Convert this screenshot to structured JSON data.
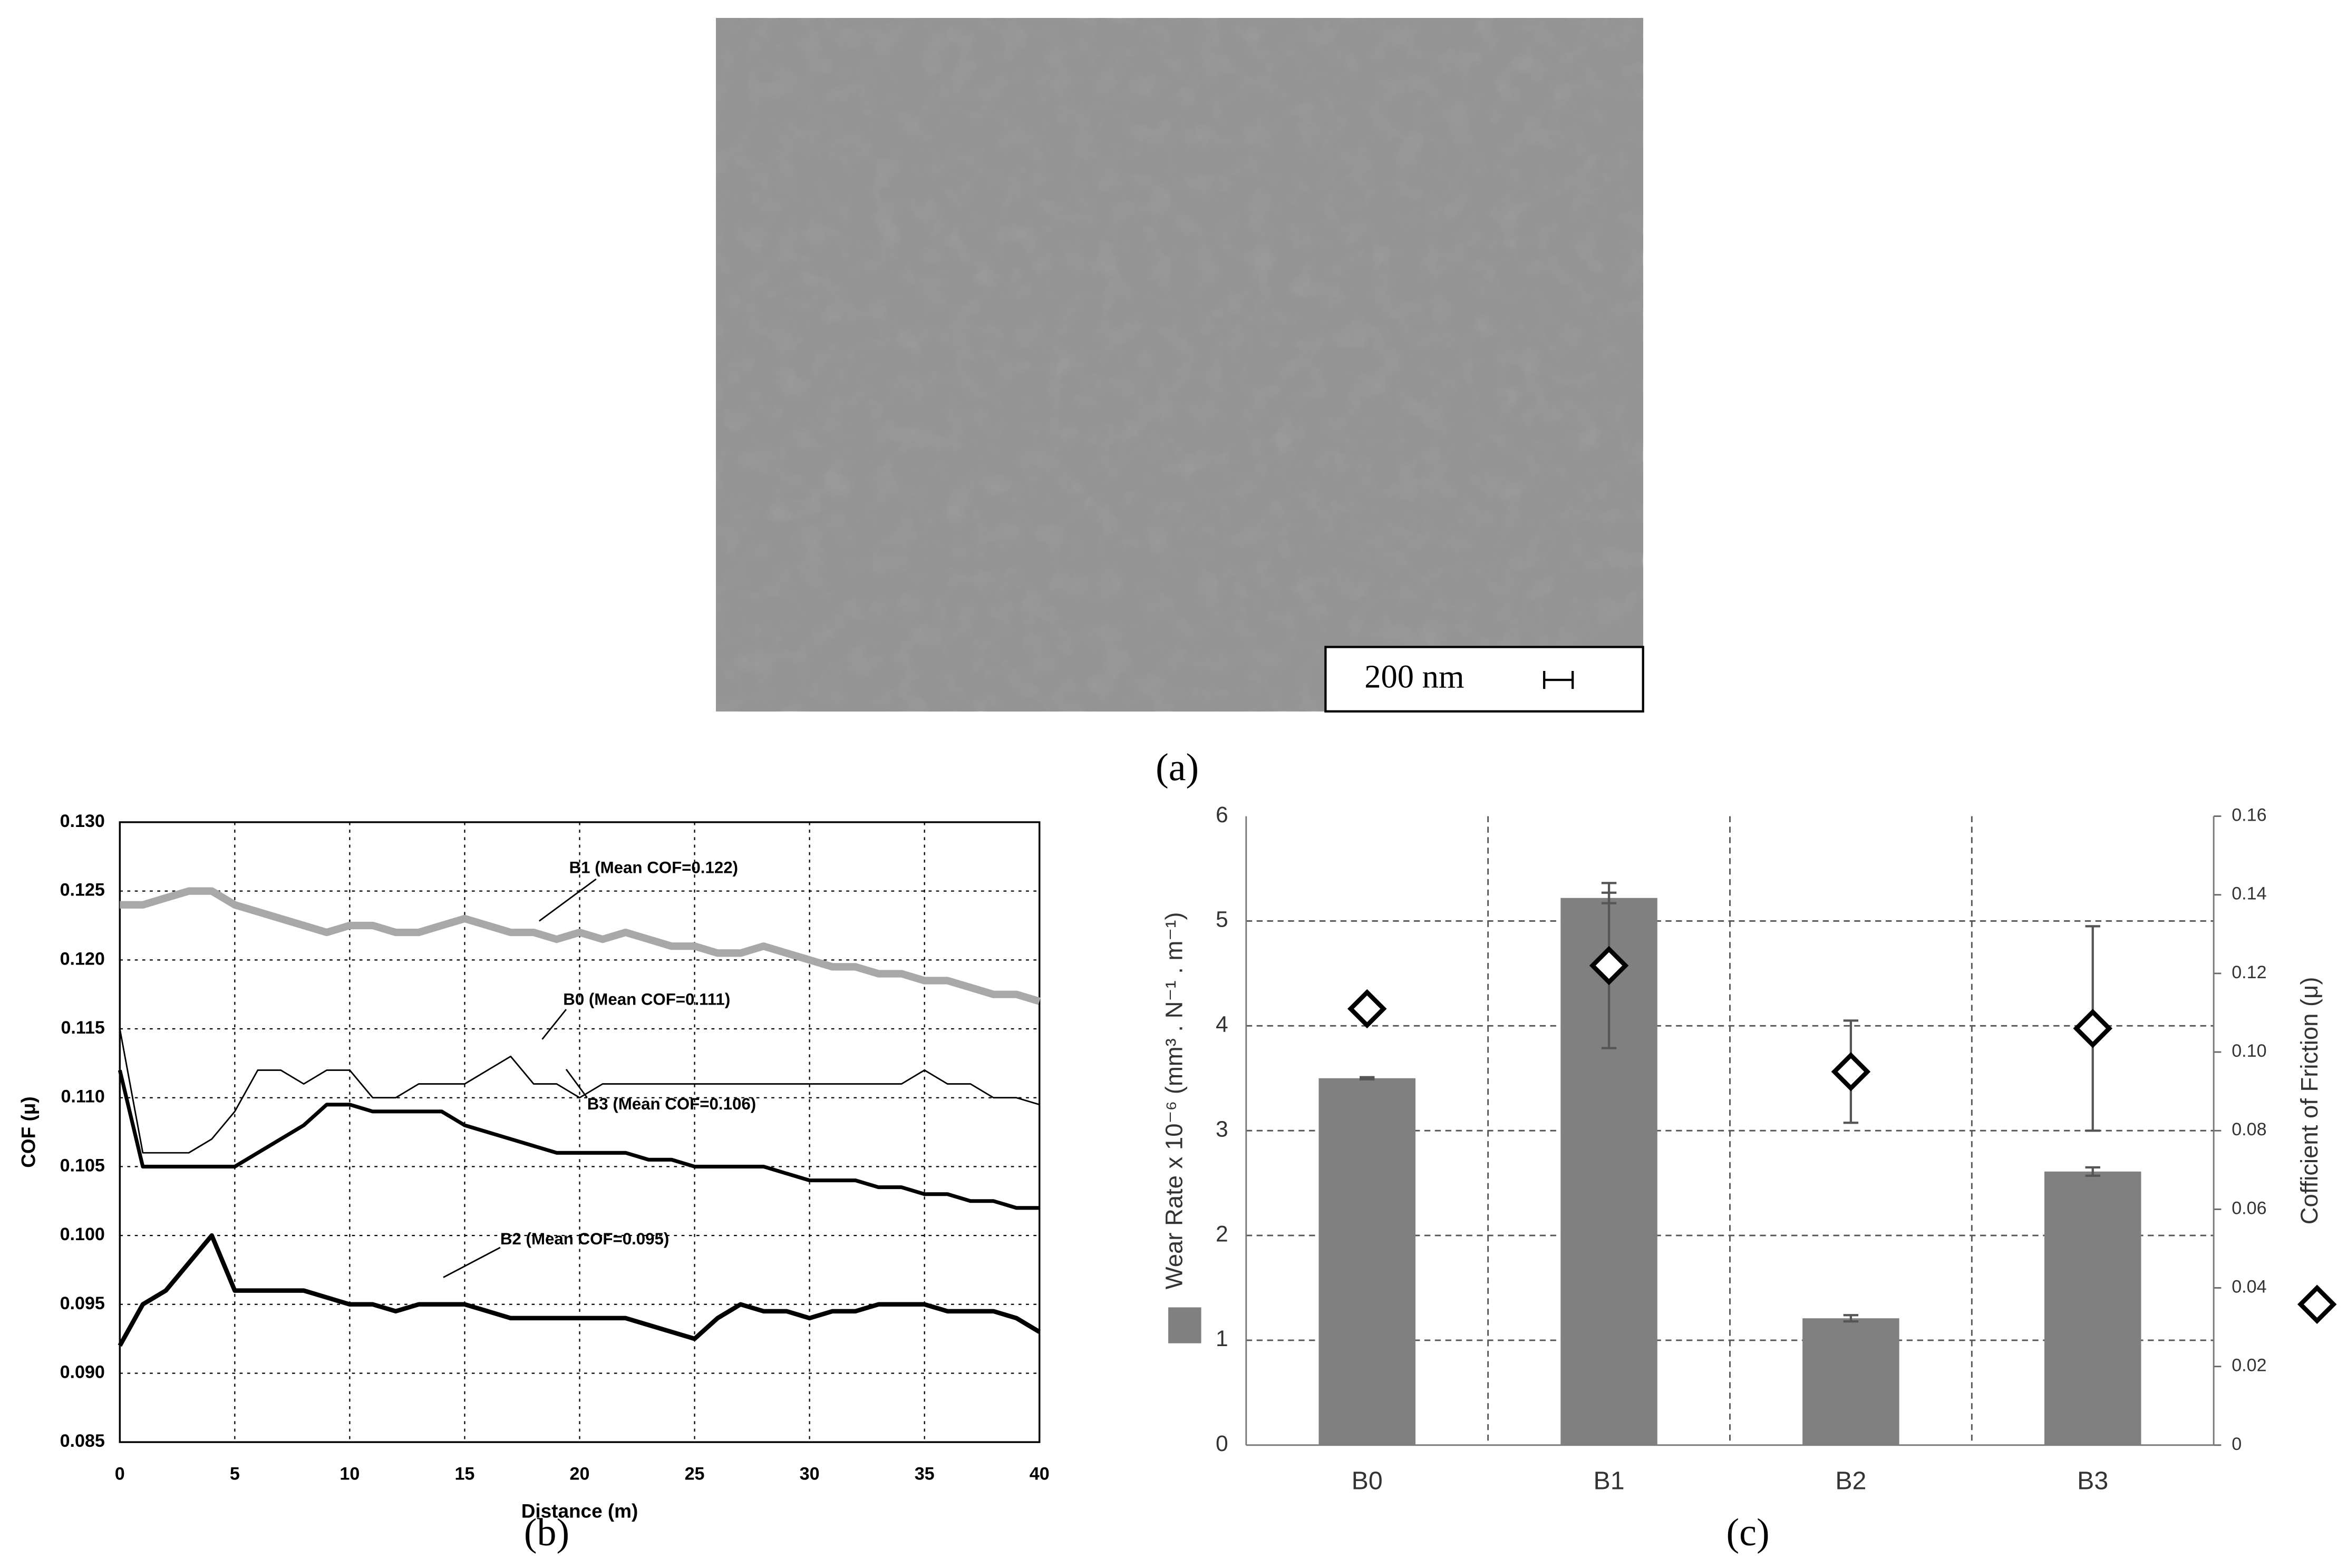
{
  "image": {
    "scale_bar_label": "200 nm",
    "panel_label": "(a)"
  },
  "chart_data": [
    {
      "type": "line",
      "panel_label": "(b)",
      "x_label": "Distance (m)",
      "y_label": "COF (μ)",
      "x": [
        0,
        1,
        2,
        3,
        4,
        5,
        6,
        7,
        8,
        9,
        10,
        11,
        12,
        13,
        14,
        15,
        16,
        17,
        18,
        19,
        20,
        21,
        22,
        23,
        24,
        25,
        26,
        27,
        28,
        29,
        30,
        31,
        32,
        33,
        34,
        35,
        36,
        37,
        38,
        39,
        40
      ],
      "xlim": [
        0,
        40
      ],
      "xticks": [
        0,
        5,
        10,
        15,
        20,
        25,
        30,
        35,
        40
      ],
      "ylim": [
        0.085,
        0.13
      ],
      "yticks": [
        0.085,
        {
          "value": 0.09,
          "label": "0.090"
        },
        0.095,
        {
          "value": 0.1,
          "label": "0.100"
        },
        0.105,
        {
          "value": 0.11,
          "label": "0.110"
        },
        0.115,
        {
          "value": 0.12,
          "label": "0.120"
        },
        0.125,
        {
          "value": 0.13,
          "label": "0.130"
        }
      ],
      "grid": true,
      "series": [
        {
          "color": "#a8a8a8",
          "values": [
            0.124,
            0.124,
            0.1245,
            0.125,
            0.125,
            0.124,
            0.1235,
            0.123,
            0.1225,
            0.122,
            0.1225,
            0.1225,
            0.122,
            0.122,
            0.1225,
            0.123,
            0.1225,
            0.122,
            0.122,
            0.1215,
            0.122,
            0.1215,
            0.122,
            0.1215,
            0.121,
            0.121,
            0.1205,
            0.1205,
            0.121,
            0.1205,
            0.12,
            0.1195,
            0.1195,
            0.119,
            0.119,
            0.1185,
            0.1185,
            0.118,
            0.1175,
            0.1175,
            0.117
          ]
        },
        {
          "color": "#000000",
          "values": [
            0.115,
            0.106,
            0.106,
            0.106,
            0.107,
            0.109,
            0.112,
            0.112,
            0.111,
            0.112,
            0.112,
            0.11,
            0.11,
            0.111,
            0.111,
            0.111,
            0.112,
            0.113,
            0.111,
            0.111,
            0.11,
            0.111,
            0.111,
            0.111,
            0.111,
            0.111,
            0.111,
            0.111,
            0.111,
            0.111,
            0.111,
            0.111,
            0.111,
            0.111,
            0.111,
            0.112,
            0.111,
            0.111,
            0.11,
            0.11,
            0.1095
          ]
        },
        {
          "color": "#000000",
          "values": [
            0.112,
            0.105,
            0.105,
            0.105,
            0.105,
            0.105,
            0.106,
            0.107,
            0.108,
            0.1095,
            0.1095,
            0.109,
            0.109,
            0.109,
            0.109,
            0.108,
            0.1075,
            0.107,
            0.1065,
            0.106,
            0.106,
            0.106,
            0.106,
            0.1055,
            0.1055,
            0.105,
            0.105,
            0.105,
            0.105,
            0.1045,
            0.104,
            0.104,
            0.104,
            0.1035,
            0.1035,
            0.103,
            0.103,
            0.1025,
            0.1025,
            0.102,
            0.102
          ]
        },
        {
          "color": "#000000",
          "values": [
            0.092,
            0.095,
            0.096,
            0.098,
            0.1,
            0.096,
            0.096,
            0.096,
            0.096,
            0.0955,
            0.095,
            0.095,
            0.0945,
            0.095,
            0.095,
            0.095,
            0.0945,
            0.094,
            0.094,
            0.094,
            0.094,
            0.094,
            0.094,
            0.0935,
            0.093,
            0.0925,
            0.094,
            0.095,
            0.0945,
            0.0945,
            0.094,
            0.0945,
            0.0945,
            0.095,
            0.095,
            0.095,
            0.0945,
            0.0945,
            0.0945,
            0.094,
            0.093
          ]
        }
      ],
      "annotations": [
        "B1 (Mean COF=0.122)",
        "B0 (Mean COF=0.111)",
        "B3 (Mean COF=0.106)",
        "B2 (Mean COF=0.095)"
      ]
    },
    {
      "type": "bar",
      "panel_label": "(c)",
      "y_label": "Wear Rate x 10⁻⁶ (mm³ . N⁻¹ . m⁻¹)",
      "y2_label": "Cofficient of Friction (μ)",
      "categories": [
        "B0",
        "B1",
        "B2",
        "B3"
      ],
      "ylim": [
        0,
        6
      ],
      "yticks": [
        0,
        1,
        2,
        3,
        4,
        5,
        6
      ],
      "y2lim": [
        0,
        0.16
      ],
      "y2ticks": [
        0,
        0.02,
        0.04,
        0.06,
        0.08,
        {
          "value": 0.1,
          "label": "0.10"
        },
        0.12,
        0.14,
        0.16
      ],
      "grid": true,
      "series": [
        {
          "type": "bar",
          "color": "#808080",
          "values": [
            3.5,
            5.22,
            1.21,
            2.61
          ],
          "errors": [
            0.01,
            0.05,
            0.03,
            0.04
          ]
        },
        {
          "type": "scatter",
          "marker": "diamond",
          "axis": "y2",
          "color": "#000000",
          "values": [
            0.111,
            0.122,
            0.095,
            0.106
          ],
          "errors": [
            0,
            0.021,
            0.013,
            0.026
          ]
        }
      ]
    }
  ]
}
